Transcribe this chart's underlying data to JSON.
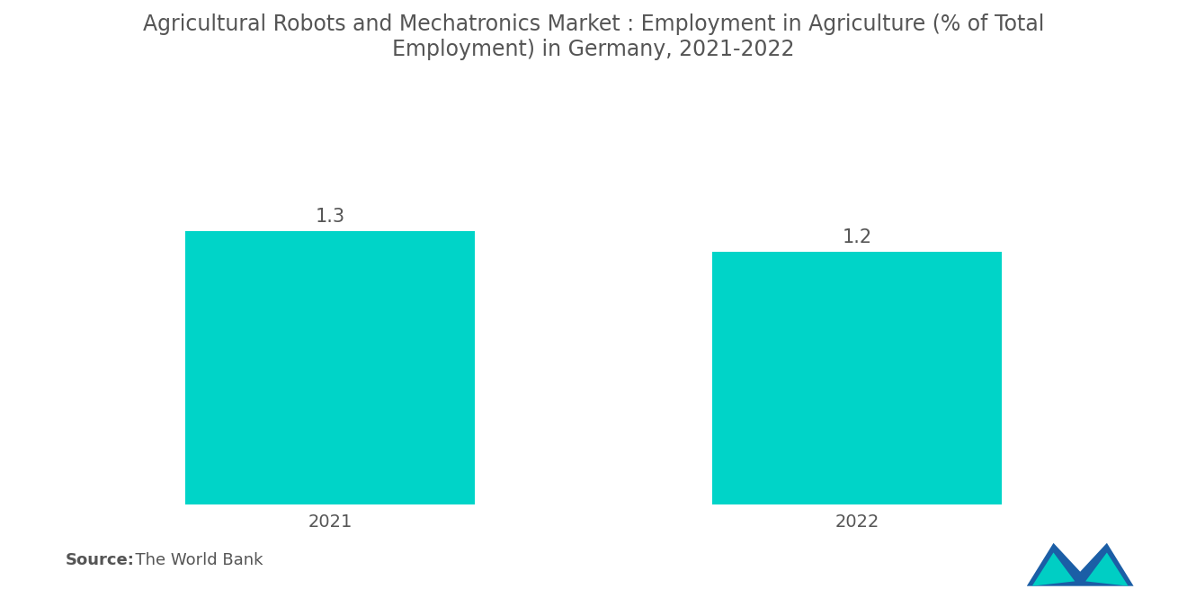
{
  "title": "Agricultural Robots and Mechatronics Market : Employment in Agriculture (% of Total\nEmployment) in Germany, 2021-2022",
  "categories": [
    "2021",
    "2022"
  ],
  "values": [
    1.3,
    1.2
  ],
  "bar_color": "#00D4C8",
  "background_color": "#ffffff",
  "value_labels": [
    "1.3",
    "1.2"
  ],
  "source_bold": "Source:",
  "source_rest": "  The World Bank",
  "ylim": [
    0,
    2.0
  ],
  "bar_width": 0.55,
  "title_fontsize": 17,
  "tick_fontsize": 14,
  "source_fontsize": 13,
  "value_fontsize": 15,
  "text_color": "#555555"
}
